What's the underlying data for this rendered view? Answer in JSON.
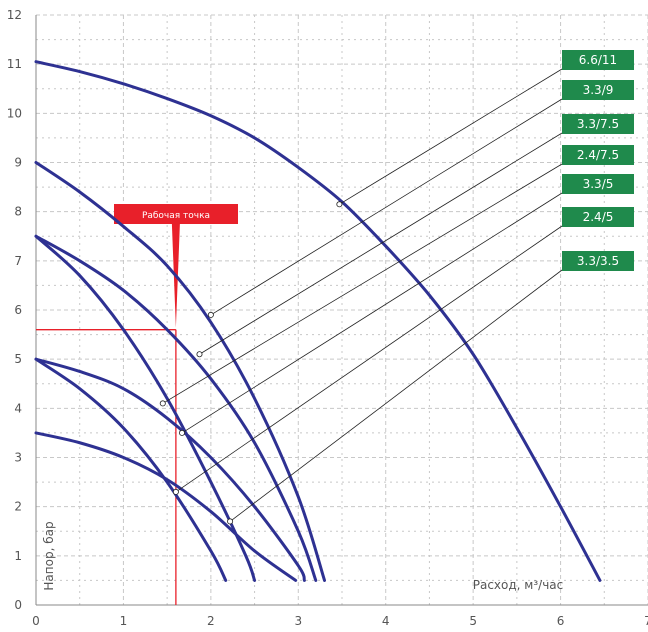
{
  "chart_data": {
    "type": "line",
    "title": "",
    "xlabel": "Расход, м³/час",
    "ylabel": "Напор, бар",
    "xlim": [
      0,
      7
    ],
    "ylim": [
      0,
      12
    ],
    "x_ticks": [
      0,
      1,
      2,
      3,
      4,
      5,
      6,
      7
    ],
    "y_ticks": [
      0,
      1,
      2,
      3,
      4,
      5,
      6,
      7,
      8,
      9,
      10,
      11,
      12
    ],
    "grid": "dashed",
    "colors": {
      "curve": "#2e3192",
      "label_bg": "#1f8a4c",
      "marker": "#e8202a",
      "grid": "#c8c8c8",
      "axis_text": "#555555",
      "leader": "#222222"
    },
    "series": [
      {
        "name": "6.6/11",
        "x": [
          0,
          0.5,
          1.0,
          1.5,
          2.0,
          2.5,
          3.0,
          3.5,
          4.0,
          4.5,
          5.0,
          5.5,
          6.0,
          6.45
        ],
        "y": [
          11.05,
          10.85,
          10.6,
          10.3,
          9.95,
          9.5,
          8.9,
          8.2,
          7.3,
          6.3,
          5.1,
          3.6,
          2.0,
          0.5
        ],
        "callout": [
          3.47,
          8.15
        ]
      },
      {
        "name": "3.3/9",
        "x": [
          0,
          0.5,
          1.0,
          1.5,
          2.0,
          2.5,
          3.0,
          3.3
        ],
        "y": [
          9.0,
          8.4,
          7.7,
          6.9,
          5.75,
          4.2,
          2.2,
          0.5
        ],
        "callout": [
          2.0,
          5.9
        ]
      },
      {
        "name": "3.3/7.5",
        "x": [
          0,
          0.5,
          1.0,
          1.5,
          2.0,
          2.5,
          3.0,
          3.2
        ],
        "y": [
          7.5,
          7.0,
          6.4,
          5.6,
          4.6,
          3.3,
          1.5,
          0.5
        ],
        "callout": [
          1.87,
          5.1
        ]
      },
      {
        "name": "2.4/7.5",
        "x": [
          0,
          0.5,
          1.0,
          1.5,
          2.0,
          2.4,
          2.5
        ],
        "y": [
          7.5,
          6.7,
          5.6,
          4.2,
          2.5,
          1.0,
          0.5
        ],
        "callout": [
          1.45,
          4.1
        ]
      },
      {
        "name": "3.3/5",
        "x": [
          0,
          0.5,
          1.0,
          1.5,
          2.0,
          2.5,
          3.0,
          3.07
        ],
        "y": [
          5.0,
          4.75,
          4.4,
          3.8,
          3.0,
          2.0,
          0.8,
          0.5
        ],
        "callout": [
          1.67,
          3.5
        ]
      },
      {
        "name": "2.4/5",
        "x": [
          0,
          0.5,
          1.0,
          1.5,
          2.0,
          2.17
        ],
        "y": [
          5.0,
          4.4,
          3.6,
          2.5,
          1.1,
          0.5
        ],
        "callout": [
          1.6,
          2.3
        ]
      },
      {
        "name": "3.3/3.5",
        "x": [
          0,
          0.5,
          1.0,
          1.5,
          2.0,
          2.5,
          2.97
        ],
        "y": [
          3.5,
          3.3,
          3.0,
          2.55,
          1.9,
          1.1,
          0.5
        ],
        "callout": [
          2.22,
          1.7
        ]
      }
    ],
    "operating_point": {
      "label": "Рабочая точка",
      "x": 1.6,
      "y": 5.6
    }
  }
}
